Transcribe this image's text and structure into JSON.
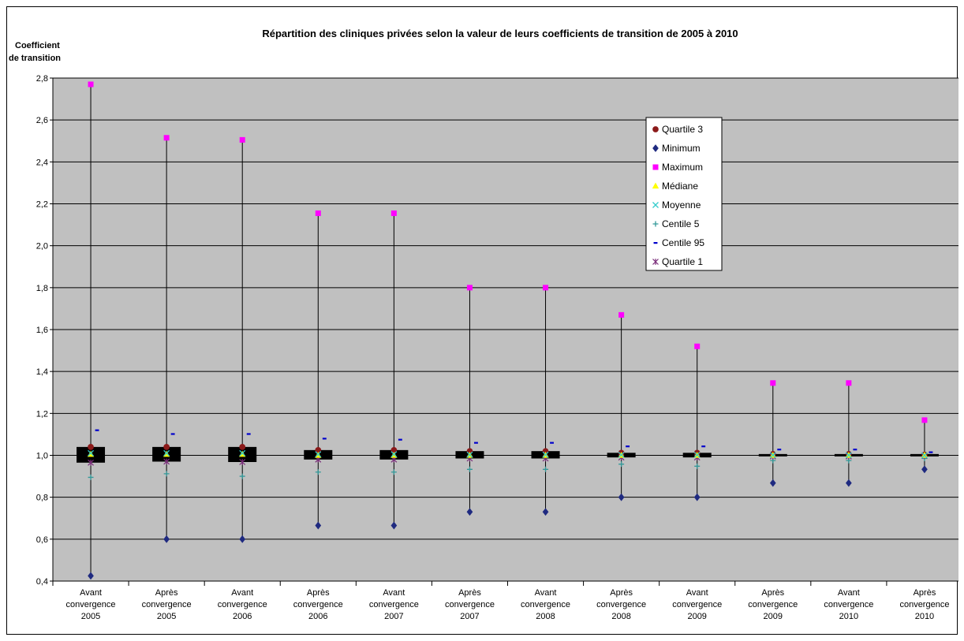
{
  "chart_data": {
    "type": "box",
    "title": "Répartition des cliniques privées selon la valeur de leurs coefficients de transition de 2005 à 2010",
    "ylabel_lines": [
      "Coefficient",
      "de transition"
    ],
    "ylim": [
      0.4,
      2.8
    ],
    "yticks": [
      "0,4",
      "0,6",
      "0,8",
      "1,0",
      "1,2",
      "1,4",
      "1,6",
      "1,8",
      "2,0",
      "2,2",
      "2,4",
      "2,6",
      "2,8"
    ],
    "grid": true,
    "legend_position": "upper-right",
    "categories": [
      [
        "Avant",
        "convergence",
        "2005"
      ],
      [
        "Après",
        "convergence",
        "2005"
      ],
      [
        "Avant",
        "convergence",
        "2006"
      ],
      [
        "Après",
        "convergence",
        "2006"
      ],
      [
        "Avant",
        "convergence",
        "2007"
      ],
      [
        "Après",
        "convergence",
        "2007"
      ],
      [
        "Avant",
        "convergence",
        "2008"
      ],
      [
        "Après",
        "convergence",
        "2008"
      ],
      [
        "Avant",
        "convergence",
        "2009"
      ],
      [
        "Après",
        "convergence",
        "2009"
      ],
      [
        "Avant",
        "convergence",
        "2010"
      ],
      [
        "Après",
        "convergence",
        "2010"
      ]
    ],
    "series": [
      {
        "name": "Quartile 3",
        "color": "#8B1A1A",
        "marker": "circle",
        "values": [
          1.04,
          1.04,
          1.04,
          1.025,
          1.025,
          1.02,
          1.02,
          1.012,
          1.012,
          1.006,
          1.006,
          1.003
        ]
      },
      {
        "name": "Minimum",
        "color": "#1F2A80",
        "marker": "diamond",
        "values": [
          0.425,
          0.6,
          0.6,
          0.665,
          0.665,
          0.73,
          0.73,
          0.8,
          0.8,
          0.868,
          0.868,
          0.933
        ]
      },
      {
        "name": "Maximum",
        "color": "#FF00FF",
        "marker": "square",
        "values": [
          2.77,
          2.515,
          2.505,
          2.155,
          2.155,
          1.8,
          1.8,
          1.67,
          1.52,
          1.345,
          1.345,
          1.168
        ]
      },
      {
        "name": "Médiane",
        "color": "#FFFF00",
        "marker": "triangle",
        "values": [
          1.005,
          1.005,
          1.005,
          1.0,
          1.0,
          1.0,
          1.0,
          1.0,
          1.0,
          1.0,
          1.0,
          1.0
        ]
      },
      {
        "name": "Moyenne",
        "color": "#33CCCC",
        "marker": "x",
        "values": [
          1.01,
          1.01,
          1.01,
          1.005,
          1.005,
          1.003,
          1.003,
          1.002,
          1.002,
          1.001,
          1.001,
          1.0
        ]
      },
      {
        "name": "Centile 5",
        "color": "#339999",
        "marker": "plus",
        "values": [
          0.895,
          0.912,
          0.9,
          0.92,
          0.92,
          0.933,
          0.933,
          0.958,
          0.948,
          0.975,
          0.975,
          0.985
        ]
      },
      {
        "name": "Centile 95",
        "color": "#0000CC",
        "marker": "dash",
        "values": [
          1.12,
          1.102,
          1.102,
          1.08,
          1.075,
          1.06,
          1.06,
          1.043,
          1.043,
          1.028,
          1.028,
          1.015
        ]
      },
      {
        "name": "Quartile 1",
        "color": "#7A2C7A",
        "marker": "star",
        "values": [
          0.965,
          0.97,
          0.968,
          0.98,
          0.98,
          0.985,
          0.985,
          0.99,
          0.99,
          0.995,
          0.995,
          0.998
        ]
      }
    ]
  }
}
